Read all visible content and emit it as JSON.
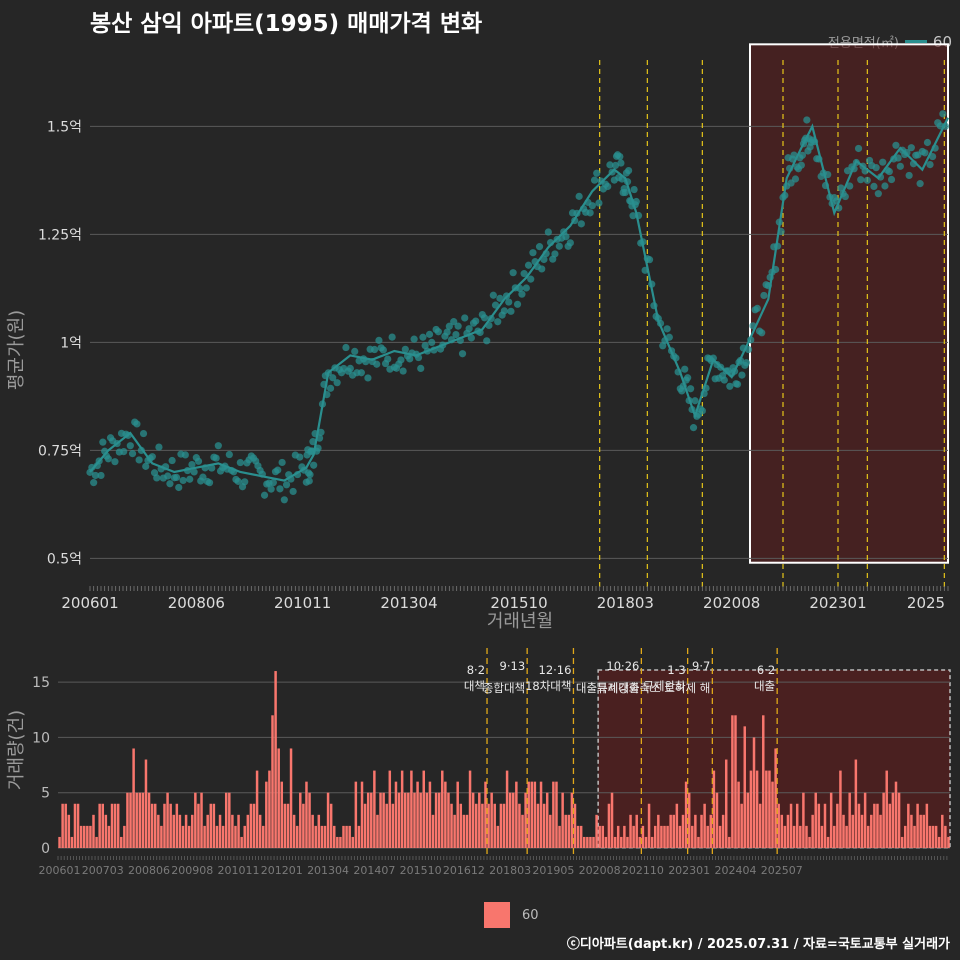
{
  "title": "봉산 삼익 아파트(1995) 매매가격 변화",
  "caption": "ⓒ디아파트(dapt.kr) / 2025.07.31 / 자료=국토교통부 실거래가",
  "colors": {
    "price": "#2a8f8f",
    "volume": "#f8766d",
    "policy_line": "#e6c619",
    "highlight_fill": "#5a1e1e"
  },
  "chart_data": [
    {
      "type": "line",
      "title": "봉산 삼익 아파트(1995) 매매가격 변화",
      "xlabel": "거래년월",
      "ylabel": "평균가(원)",
      "ylim": [
        0.45,
        1.7
      ],
      "y_ticks": [
        0.5,
        0.75,
        1.0,
        1.25,
        1.5
      ],
      "y_tick_labels": [
        "0.5억",
        "0.75억",
        "1억",
        "1.25억",
        "1.5억"
      ],
      "x_ticks": [
        "200601",
        "200806",
        "201011",
        "201304",
        "201510",
        "201803",
        "202008",
        "202301",
        "2025"
      ],
      "legend": {
        "title": "전용면적(㎡)",
        "entries": [
          "60"
        ],
        "position": "top-right"
      },
      "grid": true,
      "highlight_range": [
        "2021-01",
        "2025-07"
      ],
      "series": [
        {
          "name": "60",
          "x": [
            "2006-01",
            "2006-06",
            "2006-12",
            "2007-06",
            "2007-12",
            "2008-06",
            "2008-12",
            "2009-06",
            "2009-12",
            "2010-06",
            "2010-12",
            "2011-02",
            "2011-06",
            "2011-12",
            "2012-06",
            "2012-12",
            "2013-06",
            "2013-12",
            "2014-06",
            "2014-12",
            "2015-06",
            "2015-12",
            "2016-06",
            "2016-12",
            "2017-06",
            "2017-12",
            "2018-03",
            "2018-06",
            "2018-12",
            "2019-06",
            "2019-10",
            "2020-03",
            "2020-08",
            "2020-12",
            "2021-06",
            "2021-11",
            "2022-03",
            "2022-06",
            "2022-12",
            "2023-06",
            "2023-12",
            "2024-06",
            "2024-12",
            "2025-07"
          ],
          "values": [
            0.7,
            0.75,
            0.79,
            0.72,
            0.7,
            0.71,
            0.72,
            0.7,
            0.69,
            0.68,
            0.71,
            0.74,
            0.93,
            0.97,
            0.96,
            0.98,
            0.97,
            0.99,
            1.01,
            1.03,
            1.1,
            1.15,
            1.22,
            1.27,
            1.35,
            1.4,
            1.38,
            1.3,
            1.05,
            0.93,
            0.83,
            0.96,
            0.92,
            0.99,
            1.1,
            1.38,
            1.45,
            1.5,
            1.3,
            1.42,
            1.38,
            1.45,
            1.4,
            1.52
          ]
        }
      ]
    },
    {
      "type": "bar",
      "ylabel": "거래량(건)",
      "ylim": [
        0,
        17
      ],
      "y_ticks": [
        0,
        5,
        10,
        15
      ],
      "x_ticks": [
        "200601",
        "200703",
        "200806",
        "200908",
        "201011",
        "201201",
        "201304",
        "201407",
        "201510",
        "201612",
        "201803",
        "201905",
        "202008",
        "202110",
        "202301",
        "202404",
        "202507"
      ],
      "legend": {
        "entries": [
          "60"
        ],
        "position": "bottom"
      },
      "highlight_range": [
        "2020-08",
        "2025-07"
      ],
      "policy_events": [
        {
          "date": "2017-08",
          "label1": "8·2",
          "label2": "대책"
        },
        {
          "date": "2018-09",
          "label1": "9·13",
          "label2": "종합대책"
        },
        {
          "date": "2019-12",
          "label1": "12·16",
          "label2": "18차대책"
        },
        {
          "date": "2021-10",
          "label1": "10·26",
          "label2": "대출규제강화"
        },
        {
          "date": "2023-01",
          "label1": "1·3",
          "label2": "규제완화"
        },
        {
          "date": "2023-09",
          "label1": "9·7",
          "label2": "특례대출축소 토허제 해"
        },
        {
          "date": "2025-06",
          "label1": "6·2",
          "label2": "대출"
        }
      ],
      "series": [
        {
          "name": "60",
          "values": [
            1,
            4,
            4,
            3,
            1,
            4,
            4,
            2,
            2,
            2,
            2,
            3,
            1,
            4,
            4,
            3,
            2,
            4,
            4,
            4,
            1,
            2,
            5,
            5,
            9,
            5,
            5,
            5,
            8,
            5,
            4,
            4,
            3,
            2,
            4,
            5,
            4,
            3,
            4,
            3,
            2,
            3,
            2,
            3,
            5,
            4,
            5,
            2,
            3,
            4,
            4,
            2,
            3,
            2,
            5,
            5,
            3,
            2,
            3,
            1,
            2,
            3,
            4,
            4,
            7,
            3,
            2,
            6,
            7,
            12,
            16,
            9,
            6,
            4,
            4,
            9,
            3,
            2,
            5,
            4,
            6,
            5,
            3,
            2,
            3,
            2,
            2,
            5,
            4,
            2,
            1,
            1,
            2,
            2,
            2,
            1,
            6,
            2,
            6,
            4,
            5,
            5,
            7,
            3,
            5,
            5,
            4,
            7,
            4,
            6,
            5,
            7,
            5,
            5,
            7,
            5,
            6,
            5,
            7,
            5,
            6,
            3,
            5,
            5,
            7,
            6,
            5,
            4,
            3,
            6,
            4,
            3,
            3,
            7,
            5,
            4,
            5,
            4,
            6,
            4,
            5,
            4,
            2,
            4,
            4,
            7,
            5,
            5,
            6,
            4,
            3,
            5,
            6,
            6,
            6,
            4,
            6,
            4,
            5,
            3,
            6,
            6,
            2,
            5,
            3,
            3,
            5,
            4,
            2,
            2,
            1,
            1,
            1,
            1,
            3,
            2,
            2,
            1,
            4,
            5,
            1,
            2,
            1,
            2,
            1,
            3,
            2,
            3,
            1,
            2,
            1,
            4,
            1,
            2,
            3,
            2,
            2,
            2,
            3,
            3,
            4,
            2,
            3,
            6,
            5,
            2,
            3,
            1,
            3,
            4,
            2,
            3,
            7,
            5,
            2,
            3,
            8,
            1,
            12,
            12,
            6,
            4,
            11,
            5,
            7,
            10,
            7,
            4,
            12,
            7,
            7,
            6,
            9,
            4,
            3,
            2,
            3,
            4,
            2,
            4,
            2,
            5,
            2,
            1,
            3,
            5,
            4,
            2,
            4,
            1,
            5,
            2,
            4,
            7,
            3,
            2,
            5,
            3,
            8,
            4,
            3,
            5,
            2,
            3,
            4,
            4,
            3,
            5,
            7,
            4,
            5,
            6,
            5,
            1,
            2,
            4,
            3,
            2,
            4,
            3,
            3,
            4,
            2,
            2,
            2,
            1,
            3,
            2,
            1
          ]
        }
      ]
    }
  ]
}
